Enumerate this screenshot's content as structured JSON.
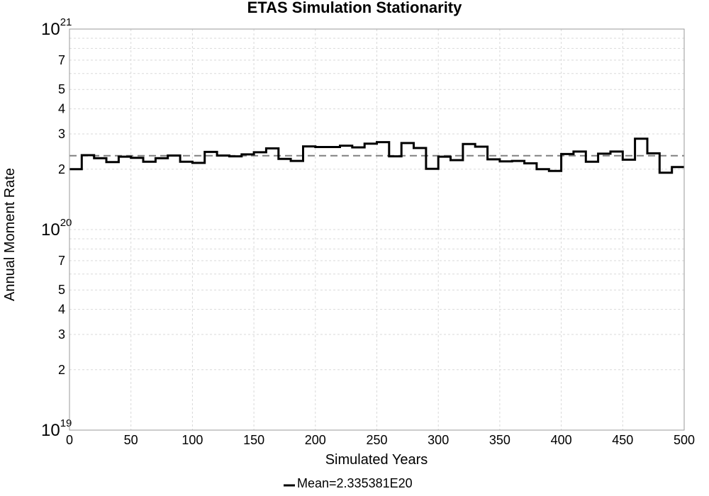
{
  "chart_data": {
    "type": "line",
    "title": "ETAS Simulation Stationarity",
    "xlabel": "Simulated Years",
    "ylabel": "Annual Moment Rate",
    "xlim": [
      0,
      500
    ],
    "ylim": [
      1e+19,
      1e+21
    ],
    "yscale": "log",
    "grid": true,
    "legend": "bottom-center",
    "x_ticks": [
      0,
      50,
      100,
      150,
      200,
      250,
      300,
      350,
      400,
      450,
      500
    ],
    "y_decade_ticks": [
      {
        "base": "10",
        "exp": "19",
        "value": 1e+19
      },
      {
        "base": "10",
        "exp": "20",
        "value": 1e+20
      },
      {
        "base": "10",
        "exp": "21",
        "value": 1e+21
      }
    ],
    "y_minor_labels": [
      "2",
      "3",
      "4",
      "5",
      "7"
    ],
    "series": [
      {
        "name": "Mean=2.335381E20",
        "style": "dashed",
        "color": "#808080",
        "value": 2.335381e+20
      },
      {
        "style": "step",
        "color": "#000000",
        "bin_width": 10,
        "values": [
          2e+20,
          2.35e+20,
          2.27e+20,
          2.17e+20,
          2.31e+20,
          2.28e+20,
          2.18e+20,
          2.27e+20,
          2.34e+20,
          2.18e+20,
          2.15e+20,
          2.44e+20,
          2.34e+20,
          2.32e+20,
          2.37e+20,
          2.43e+20,
          2.54e+20,
          2.25e+20,
          2.2e+20,
          2.6e+20,
          2.58e+20,
          2.58e+20,
          2.62e+20,
          2.57e+20,
          2.68e+20,
          2.73e+20,
          2.32e+20,
          2.7e+20,
          2.55e+20,
          2.01e+20,
          2.31e+20,
          2.22e+20,
          2.67e+20,
          2.59e+20,
          2.24e+20,
          2.19e+20,
          2.2e+20,
          2.14e+20,
          2e+20,
          1.96e+20,
          2.38e+20,
          2.45e+20,
          2.18e+20,
          2.39e+20,
          2.45e+20,
          2.23e+20,
          2.84e+20,
          2.4e+20,
          1.92e+20,
          2.05e+20
        ]
      }
    ]
  },
  "legend": {
    "mean_label": "Mean=2.335381E20"
  },
  "colors": {
    "grid": "#d9d9d9",
    "frame": "#999999",
    "mean_line": "#808080",
    "data_line": "#000000"
  }
}
